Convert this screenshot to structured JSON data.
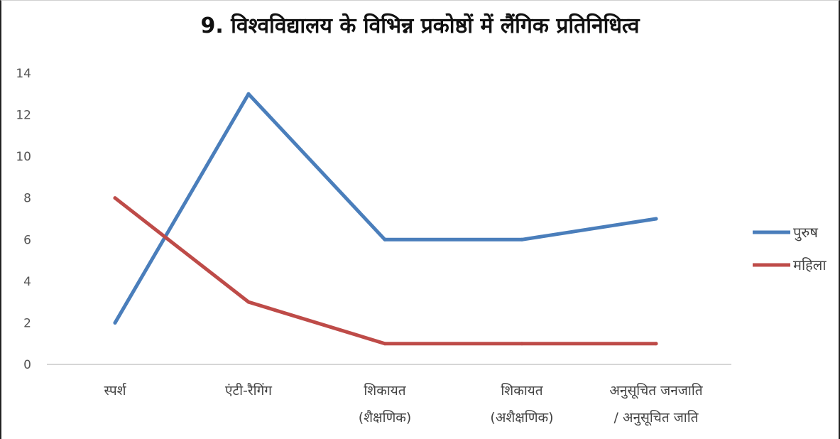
{
  "chart_data": {
    "type": "line",
    "title": "9. विश्वविद्यालय के विभिन्न प्रकोष्ठों में लैंगिक प्रतिनिधित्व",
    "categories": [
      [
        "स्पर्श"
      ],
      [
        "एंटी-रैगिंग"
      ],
      [
        "शिकायत",
        "(शैक्षणिक)"
      ],
      [
        "शिकायत",
        "(अशैक्षणिक)"
      ],
      [
        "अनुसूचित जनजाति",
        "/ अनुसूचित जाति"
      ]
    ],
    "series": [
      {
        "name": "पुरुष",
        "values": [
          2,
          13,
          6,
          6,
          7
        ],
        "color": "#4a7ebb"
      },
      {
        "name": "महिला",
        "values": [
          8,
          3,
          1,
          1,
          1
        ],
        "color": "#be4b48"
      }
    ],
    "yticks": [
      0,
      2,
      4,
      6,
      8,
      10,
      12,
      14
    ],
    "ylim": [
      0,
      14
    ],
    "grid": false,
    "legend": "right"
  }
}
